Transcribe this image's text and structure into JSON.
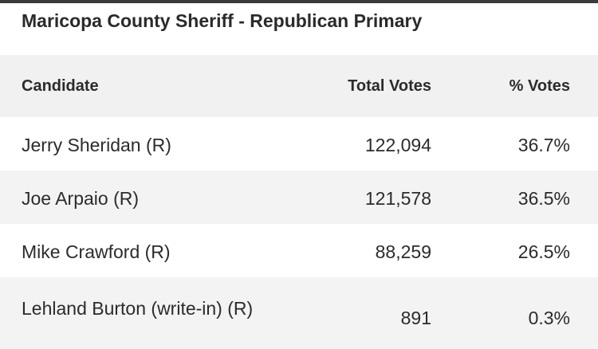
{
  "title": "Maricopa County Sheriff - Republican Primary",
  "columns": {
    "candidate": "Candidate",
    "total_votes": "Total Votes",
    "pct_votes": "% Votes"
  },
  "rows": [
    {
      "candidate": "Jerry Sheridan (R)",
      "total_votes": "122,094",
      "pct_votes": "36.7%"
    },
    {
      "candidate": "Joe Arpaio (R)",
      "total_votes": "121,578",
      "pct_votes": "36.5%"
    },
    {
      "candidate": "Mike Crawford (R)",
      "total_votes": "88,259",
      "pct_votes": "26.5%"
    },
    {
      "candidate": "Lehland Burton (write-in) (R)",
      "total_votes": "891",
      "pct_votes": "0.3%"
    }
  ]
}
